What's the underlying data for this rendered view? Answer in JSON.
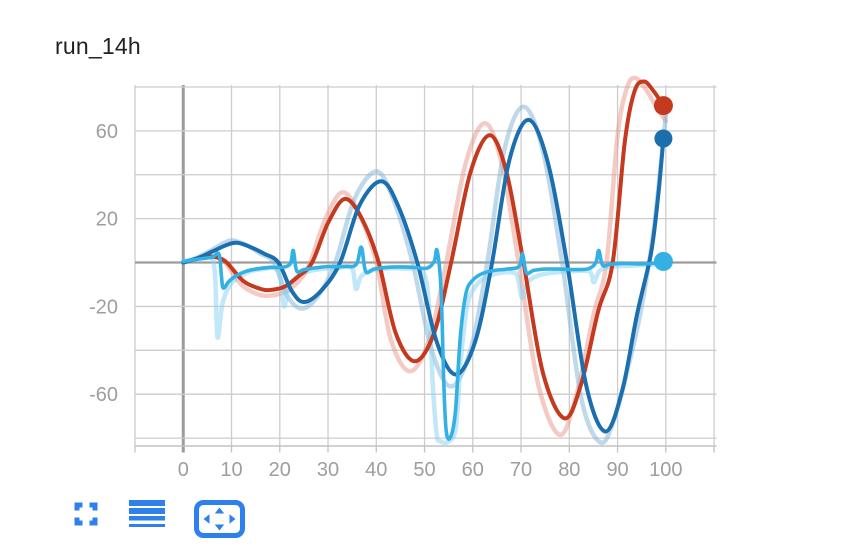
{
  "title": "run_14h",
  "toolbar": {
    "color": "#2e80ec",
    "icons": [
      {
        "name": "fullscreen-icon"
      },
      {
        "name": "runs-lines-icon"
      },
      {
        "name": "fit-to-view-icon"
      }
    ]
  },
  "chart_data": {
    "type": "line",
    "title": "run_14h",
    "grid": true,
    "legend_position": "none",
    "x_axis": {
      "min": -10,
      "max": 110.5,
      "grid_step": 10,
      "ticks": [
        {
          "v": 0,
          "label": "0"
        },
        {
          "v": 10,
          "label": "10"
        },
        {
          "v": 20,
          "label": "20"
        },
        {
          "v": 30,
          "label": "30"
        },
        {
          "v": 40,
          "label": "40"
        },
        {
          "v": 50,
          "label": "50"
        },
        {
          "v": 60,
          "label": "60"
        },
        {
          "v": 70,
          "label": "70"
        },
        {
          "v": 80,
          "label": "80"
        },
        {
          "v": 90,
          "label": "90"
        },
        {
          "v": 100,
          "label": "100"
        }
      ]
    },
    "y_axis": {
      "min": -83.6,
      "max": 80.9,
      "grid_step": 20,
      "ticks": [
        {
          "v": 60,
          "label": "60"
        },
        {
          "v": 20,
          "label": "20"
        },
        {
          "v": -20,
          "label": "-20"
        },
        {
          "v": -60,
          "label": "-60"
        }
      ]
    },
    "colors": {
      "grid": "#cdcdcd",
      "zero_line": "#9c9c9c",
      "axis_line": "#c2c2c2",
      "tick_label": "#9e9e9e",
      "red": "#c5391e",
      "blue": "#1b6fae",
      "cyan": "#33b1e5",
      "red_raw": "#e8988a",
      "blue_raw": "#7fb3d5",
      "cyan_raw": "#8ed4f2"
    },
    "series": [
      {
        "name": "red-raw",
        "color": "#e8988a",
        "width": 4.5,
        "opacity": 0.5,
        "points": [
          [
            0,
            0
          ],
          [
            2.5,
            1.6
          ],
          [
            5,
            2.8
          ],
          [
            7,
            2.4
          ],
          [
            8.7,
            0
          ],
          [
            12,
            -10
          ],
          [
            15.5,
            -14.5
          ],
          [
            18.3,
            -15
          ],
          [
            21.5,
            -13
          ],
          [
            24.5,
            -7
          ],
          [
            26.3,
            0
          ],
          [
            29.5,
            20
          ],
          [
            33,
            32
          ],
          [
            36.5,
            22
          ],
          [
            40,
            0
          ],
          [
            43,
            -35
          ],
          [
            47,
            -49.5
          ],
          [
            51,
            -35
          ],
          [
            54.5,
            0
          ],
          [
            58.5,
            45
          ],
          [
            62.5,
            63.5
          ],
          [
            66,
            45
          ],
          [
            69.5,
            0
          ],
          [
            73.5,
            -55
          ],
          [
            78,
            -78.5
          ],
          [
            81.5,
            -60
          ],
          [
            85,
            -24
          ],
          [
            87.7,
            0
          ],
          [
            90,
            58
          ],
          [
            92,
            80
          ],
          [
            93.8,
            84
          ],
          [
            96,
            78.5
          ],
          [
            98,
            71
          ],
          [
            100,
            64.5
          ]
        ]
      },
      {
        "name": "blue-raw",
        "color": "#7fb3d5",
        "width": 4.5,
        "opacity": 0.5,
        "points": [
          [
            0,
            0
          ],
          [
            2.8,
            2.2
          ],
          [
            5.5,
            5.2
          ],
          [
            8.5,
            9
          ],
          [
            10.5,
            10
          ],
          [
            13.5,
            7.5
          ],
          [
            16,
            4
          ],
          [
            18.8,
            0
          ],
          [
            21.5,
            -15
          ],
          [
            24.6,
            -21
          ],
          [
            28,
            -15
          ],
          [
            31.5,
            0
          ],
          [
            35.5,
            29
          ],
          [
            40,
            41.5
          ],
          [
            43.5,
            29
          ],
          [
            47.5,
            0
          ],
          [
            51.5,
            -40
          ],
          [
            55.5,
            -56.5
          ],
          [
            59.5,
            -40
          ],
          [
            63,
            0
          ],
          [
            66.5,
            51
          ],
          [
            70.5,
            71
          ],
          [
            74.5,
            51
          ],
          [
            78.5,
            0
          ],
          [
            82.5,
            -62
          ],
          [
            86.5,
            -82
          ],
          [
            89.5,
            -70
          ],
          [
            92.5,
            -45
          ],
          [
            95,
            -20
          ],
          [
            97.5,
            15
          ],
          [
            100,
            67
          ]
        ]
      },
      {
        "name": "cyan-raw",
        "color": "#8ed4f2",
        "width": 4.5,
        "opacity": 0.55,
        "points": [
          [
            0,
            0.6
          ],
          [
            2,
            1.4
          ],
          [
            4,
            2.2
          ],
          [
            5.8,
            3
          ],
          [
            6.6,
            -6
          ],
          [
            7.1,
            -34
          ],
          [
            8.1,
            -19
          ],
          [
            9.5,
            -11
          ],
          [
            11.5,
            -6.5
          ],
          [
            14,
            -4
          ],
          [
            16.5,
            -3
          ],
          [
            19,
            -2.6
          ],
          [
            20.2,
            -8
          ],
          [
            20.9,
            -20
          ],
          [
            21.9,
            -11
          ],
          [
            23.5,
            -6.5
          ],
          [
            26,
            -4
          ],
          [
            29,
            -2.8
          ],
          [
            32,
            -2.6
          ],
          [
            34.9,
            -2.2
          ],
          [
            35.8,
            -12
          ],
          [
            36.8,
            -6.5
          ],
          [
            38.5,
            -4
          ],
          [
            41,
            -3
          ],
          [
            44,
            -2.6
          ],
          [
            47,
            -2.8
          ],
          [
            49.5,
            -3.4
          ],
          [
            50.8,
            -16
          ],
          [
            51.7,
            -55
          ],
          [
            52.5,
            -78
          ],
          [
            53.3,
            -81.5
          ],
          [
            55,
            -81.5
          ],
          [
            56.5,
            -75
          ],
          [
            57.5,
            -45
          ],
          [
            58.8,
            -20
          ],
          [
            60.5,
            -11
          ],
          [
            62.5,
            -7
          ],
          [
            65,
            -5
          ],
          [
            67.5,
            -4.4
          ],
          [
            69.2,
            -6
          ],
          [
            70.2,
            -16
          ],
          [
            71.4,
            -9
          ],
          [
            73.5,
            -6
          ],
          [
            76,
            -4.8
          ],
          [
            79,
            -4.2
          ],
          [
            82,
            -3.8
          ],
          [
            84.3,
            -4.2
          ],
          [
            85.1,
            -9
          ],
          [
            86.2,
            -4
          ],
          [
            88,
            -2.2
          ],
          [
            91,
            -1.6
          ],
          [
            94,
            -1.3
          ],
          [
            97,
            -1
          ],
          [
            100,
            -0.5
          ]
        ]
      },
      {
        "name": "red-smoothed",
        "color": "#c5391e",
        "width": 4,
        "points": [
          [
            0,
            0
          ],
          [
            2.5,
            1.5
          ],
          [
            5,
            2.6
          ],
          [
            7,
            2.3
          ],
          [
            9,
            0
          ],
          [
            12.5,
            -8.5
          ],
          [
            16,
            -12
          ],
          [
            18,
            -12.5
          ],
          [
            21,
            -11
          ],
          [
            24,
            -6
          ],
          [
            26.7,
            0
          ],
          [
            30,
            18
          ],
          [
            33.5,
            29
          ],
          [
            37,
            20
          ],
          [
            40.5,
            0
          ],
          [
            44,
            -32
          ],
          [
            48,
            -45
          ],
          [
            52,
            -32
          ],
          [
            55.5,
            0
          ],
          [
            59.5,
            41
          ],
          [
            63.5,
            58
          ],
          [
            67,
            41
          ],
          [
            70.5,
            0
          ],
          [
            74.5,
            -50
          ],
          [
            79,
            -71
          ],
          [
            82.5,
            -55
          ],
          [
            86,
            -22
          ],
          [
            89,
            0
          ],
          [
            91.5,
            55
          ],
          [
            93.5,
            78
          ],
          [
            95.5,
            82.5
          ],
          [
            97.5,
            78
          ],
          [
            99.5,
            71.5
          ]
        ]
      },
      {
        "name": "blue-smoothed",
        "color": "#1b6fae",
        "width": 4,
        "points": [
          [
            0,
            0
          ],
          [
            3,
            2
          ],
          [
            6,
            5
          ],
          [
            9,
            8
          ],
          [
            11.2,
            9
          ],
          [
            14,
            7
          ],
          [
            16.8,
            4
          ],
          [
            19.7,
            0
          ],
          [
            22.5,
            -13
          ],
          [
            25,
            -18
          ],
          [
            28.5,
            -13
          ],
          [
            32.5,
            0
          ],
          [
            36.5,
            26
          ],
          [
            41,
            37
          ],
          [
            44.5,
            26
          ],
          [
            48.5,
            0
          ],
          [
            52.5,
            -36
          ],
          [
            56.5,
            -51
          ],
          [
            60.5,
            -36
          ],
          [
            64,
            0
          ],
          [
            67.5,
            46
          ],
          [
            71.5,
            65
          ],
          [
            75.5,
            46
          ],
          [
            79.5,
            0
          ],
          [
            83.5,
            -56
          ],
          [
            87.5,
            -77
          ],
          [
            91,
            -58
          ],
          [
            94,
            -24
          ],
          [
            96.9,
            4
          ],
          [
            98.4,
            30
          ],
          [
            99.5,
            56.5
          ]
        ]
      },
      {
        "name": "cyan-smoothed",
        "color": "#33b1e5",
        "width": 3.6,
        "points": [
          [
            0,
            0.5
          ],
          [
            2,
            1.2
          ],
          [
            4,
            1.8
          ],
          [
            6,
            2.4
          ],
          [
            7.4,
            3.8
          ],
          [
            7.9,
            -6
          ],
          [
            8.3,
            -11.6
          ],
          [
            9.5,
            -8.5
          ],
          [
            11,
            -6
          ],
          [
            13,
            -4
          ],
          [
            15.5,
            -2.8
          ],
          [
            18,
            -2.2
          ],
          [
            20.5,
            -2.2
          ],
          [
            22.2,
            -0.5
          ],
          [
            22.8,
            5.5
          ],
          [
            23.5,
            -3.8
          ],
          [
            25,
            -3.2
          ],
          [
            27.5,
            -2.4
          ],
          [
            30,
            -1.8
          ],
          [
            33,
            -1.8
          ],
          [
            35.8,
            -1
          ],
          [
            36.9,
            7
          ],
          [
            37.8,
            -4
          ],
          [
            39.5,
            -3
          ],
          [
            42,
            -2.2
          ],
          [
            45,
            -2
          ],
          [
            48,
            -2.2
          ],
          [
            50.5,
            -2.6
          ],
          [
            52,
            0.5
          ],
          [
            52.6,
            5.5
          ],
          [
            53.4,
            -12
          ],
          [
            54,
            -55
          ],
          [
            54.5,
            -77
          ],
          [
            55.4,
            -79.5
          ],
          [
            56.4,
            -68
          ],
          [
            57.4,
            -34
          ],
          [
            58.6,
            -14
          ],
          [
            60,
            -8
          ],
          [
            62,
            -5
          ],
          [
            64.5,
            -3.6
          ],
          [
            67,
            -3
          ],
          [
            69.6,
            -1.8
          ],
          [
            70.3,
            4
          ],
          [
            71.1,
            -4.6
          ],
          [
            72.6,
            -3.6
          ],
          [
            75,
            -3
          ],
          [
            78,
            -3
          ],
          [
            81,
            -3.2
          ],
          [
            84,
            -2.8
          ],
          [
            85.5,
            0
          ],
          [
            86.1,
            5.5
          ],
          [
            86.9,
            -1.2
          ],
          [
            88.5,
            -0.8
          ],
          [
            91,
            -0.4
          ],
          [
            94,
            -0.6
          ],
          [
            97,
            -0.4
          ],
          [
            99.5,
            0.5
          ]
        ]
      }
    ],
    "end_markers": [
      {
        "series": "red-smoothed",
        "x": 99.5,
        "y": 71.5,
        "r": 9.5
      },
      {
        "series": "blue-smoothed",
        "x": 99.5,
        "y": 56.5,
        "r": 9
      },
      {
        "series": "cyan-smoothed",
        "x": 99.5,
        "y": 0.5,
        "r": 9.5
      }
    ]
  }
}
